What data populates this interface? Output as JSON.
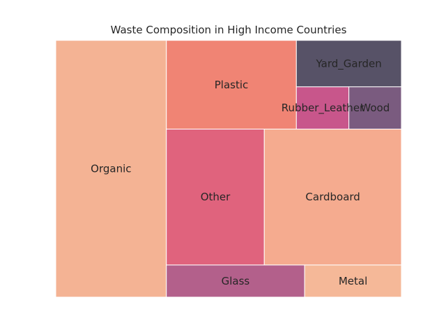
{
  "chart_data": {
    "type": "treemap",
    "title": "Waste Composition in High Income Countries",
    "items": [
      {
        "label": "Organic",
        "value": 32,
        "color": "#f4b394"
      },
      {
        "label": "Plastic",
        "value": 13,
        "color": "#f08474"
      },
      {
        "label": "Yard_Garden",
        "value": 5.5,
        "color": "#575267"
      },
      {
        "label": "Rubber_Leather",
        "value": 2.5,
        "color": "#c8568b"
      },
      {
        "label": "Wood",
        "value": 2.5,
        "color": "#7a5b7f"
      },
      {
        "label": "Other",
        "value": 15,
        "color": "#e0637d"
      },
      {
        "label": "Cardboard",
        "value": 21,
        "color": "#f5ab8f"
      },
      {
        "label": "Glass",
        "value": 5,
        "color": "#b3608b"
      },
      {
        "label": "Metal",
        "value": 3.5,
        "color": "#f5b898"
      }
    ]
  }
}
